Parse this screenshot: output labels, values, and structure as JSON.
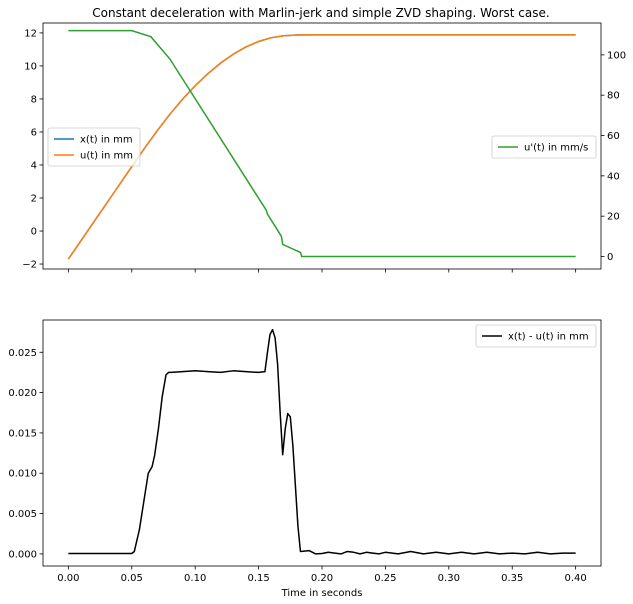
{
  "chart_data": [
    {
      "type": "line",
      "title": "Constant deceleration with Marlin-jerk and simple ZVD shaping. Worst case.",
      "xlim": [
        -0.02,
        0.42
      ],
      "ylim_left": [
        -2.3,
        12.6
      ],
      "ylim_right": [
        -6.2,
        115.8
      ],
      "yticks_left": [
        -2,
        0,
        2,
        4,
        6,
        8,
        10,
        12
      ],
      "yticks_right": [
        0,
        20,
        40,
        60,
        80,
        100
      ],
      "xticks": [
        0.0,
        0.05,
        0.1,
        0.15,
        0.2,
        0.25,
        0.3,
        0.35,
        0.4
      ],
      "show_xtick_labels": false,
      "series": [
        {
          "name": "x(t)  in mm",
          "axis": "left",
          "color": "#1f77b4",
          "x": [
            0,
            0.01,
            0.02,
            0.03,
            0.04,
            0.05,
            0.06,
            0.07,
            0.08,
            0.09,
            0.1,
            0.11,
            0.12,
            0.13,
            0.14,
            0.15,
            0.16,
            0.17,
            0.18,
            0.19,
            0.2,
            0.25,
            0.3,
            0.35,
            0.4
          ],
          "y": [
            -1.7,
            -0.58,
            0.54,
            1.66,
            2.78,
            3.9,
            5.0,
            6.07,
            7.07,
            7.98,
            8.8,
            9.53,
            10.17,
            10.71,
            11.15,
            11.48,
            11.71,
            11.83,
            11.87,
            11.88,
            11.88,
            11.88,
            11.88,
            11.88,
            11.88
          ]
        },
        {
          "name": "u(t)  in mm",
          "axis": "left",
          "color": "#ff7f0e",
          "x": [
            0,
            0.01,
            0.02,
            0.03,
            0.04,
            0.05,
            0.06,
            0.07,
            0.08,
            0.09,
            0.1,
            0.11,
            0.12,
            0.13,
            0.14,
            0.15,
            0.16,
            0.17,
            0.18,
            0.19,
            0.2,
            0.25,
            0.3,
            0.35,
            0.4
          ],
          "y": [
            -1.7,
            -0.58,
            0.54,
            1.66,
            2.78,
            3.9,
            5.0,
            6.07,
            7.07,
            7.98,
            8.8,
            9.53,
            10.17,
            10.71,
            11.15,
            11.48,
            11.71,
            11.83,
            11.87,
            11.88,
            11.88,
            11.88,
            11.88,
            11.88,
            11.88
          ]
        },
        {
          "name": "u'(t)  in mm/s",
          "axis": "right",
          "color": "#2ca02c",
          "x": [
            0,
            0.05,
            0.065,
            0.08,
            0.156,
            0.157,
            0.168,
            0.169,
            0.183,
            0.184,
            0.4
          ],
          "y": [
            112,
            112,
            109,
            98,
            23,
            21,
            10,
            6,
            2,
            0,
            0
          ]
        }
      ],
      "legends": [
        {
          "entries": [
            "x(t)  in mm",
            "u(t)  in mm"
          ],
          "placement": "center-left"
        },
        {
          "entries": [
            "u'(t)  in mm/s"
          ],
          "placement": "center-right"
        }
      ]
    },
    {
      "type": "line",
      "xlabel": "Time in seconds",
      "xlim": [
        -0.02,
        0.42
      ],
      "ylim": [
        -0.0015,
        0.029
      ],
      "xticks": [
        0.0,
        0.05,
        0.1,
        0.15,
        0.2,
        0.25,
        0.3,
        0.35,
        0.4
      ],
      "xtick_labels": [
        "0.00",
        "0.05",
        "0.10",
        "0.15",
        "0.20",
        "0.25",
        "0.30",
        "0.35",
        "0.40"
      ],
      "yticks": [
        0.0,
        0.005,
        0.01,
        0.015,
        0.02,
        0.025
      ],
      "ytick_labels": [
        "0.000",
        "0.005",
        "0.010",
        "0.015",
        "0.020",
        "0.025"
      ],
      "series": [
        {
          "name": "x(t) - u(t)  in mm",
          "color": "#000000",
          "x": [
            0,
            0.05,
            0.052,
            0.056,
            0.06,
            0.063,
            0.066,
            0.068,
            0.071,
            0.074,
            0.077,
            0.079,
            0.081,
            0.09,
            0.1,
            0.11,
            0.12,
            0.13,
            0.14,
            0.15,
            0.155,
            0.157,
            0.159,
            0.161,
            0.163,
            0.165,
            0.167,
            0.169,
            0.171,
            0.173,
            0.175,
            0.177,
            0.179,
            0.181,
            0.183,
            0.186,
            0.19,
            0.195,
            0.2,
            0.205,
            0.21,
            0.215,
            0.22,
            0.225,
            0.23,
            0.235,
            0.24,
            0.245,
            0.25,
            0.26,
            0.27,
            0.28,
            0.29,
            0.3,
            0.31,
            0.32,
            0.33,
            0.34,
            0.35,
            0.36,
            0.37,
            0.38,
            0.39,
            0.4
          ],
          "y": [
            5e-05,
            5e-05,
            0.0003,
            0.003,
            0.007,
            0.01,
            0.0108,
            0.0122,
            0.0155,
            0.0195,
            0.0222,
            0.0225,
            0.0225,
            0.0226,
            0.0227,
            0.0226,
            0.0225,
            0.0227,
            0.0226,
            0.0225,
            0.0226,
            0.025,
            0.0272,
            0.0278,
            0.0268,
            0.0235,
            0.0175,
            0.0123,
            0.0155,
            0.0174,
            0.017,
            0.0135,
            0.0085,
            0.0035,
            0.0003,
            0.00035,
            0.0004,
            0.0,
            5e-05,
            0.0002,
            0.0001,
            0.0,
            0.0003,
            0.0002,
            0.0,
            0.0002,
            0.0001,
            0.0,
            0.0002,
            0.0,
            0.0003,
            0.0,
            0.0002,
            0.0,
            0.0002,
            0.0,
            0.0002,
            0.0,
            0.0001,
            0.0,
            0.0002,
            0.0,
            0.0001,
            0.0001
          ]
        }
      ],
      "legend": {
        "entries": [
          "x(t) - u(t)  in mm"
        ],
        "placement": "top-right"
      }
    }
  ]
}
